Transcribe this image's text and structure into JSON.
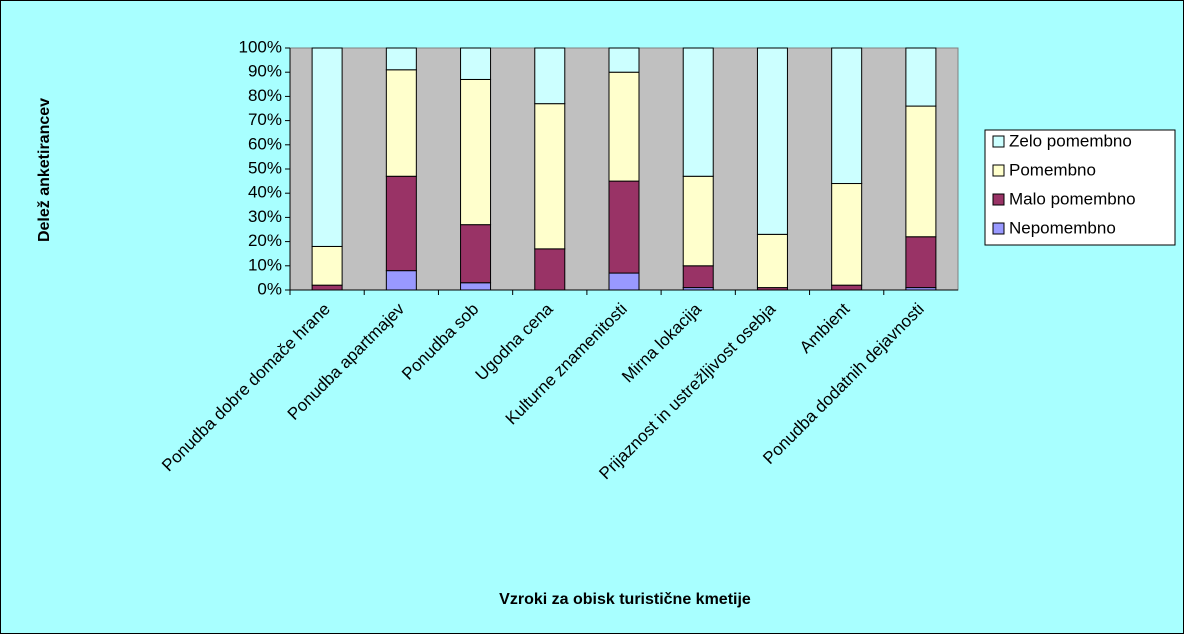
{
  "chart_data": {
    "type": "stacked_bar_percent",
    "y_axis_label": "Delež anketirancev",
    "x_axis_label": "Vzroki za obisk turistične kmetije",
    "categories": [
      "Ponudba dobre domače hrane",
      "Ponudba apartmajev",
      "Ponudba sob",
      "Ugodna cena",
      "Kulturne znamenitosti",
      "Mirna lokacija",
      "Prijaznost in ustrežljivost osebja",
      "Ambient",
      "Ponudba dodatnih dejavnosti"
    ],
    "series": [
      {
        "name": "Nepomembno",
        "color": "#9999ff",
        "values": [
          0,
          8,
          3,
          0,
          7,
          1,
          0,
          0,
          1
        ]
      },
      {
        "name": "Malo pomembno",
        "color": "#993366",
        "values": [
          2,
          39,
          24,
          17,
          38,
          9,
          1,
          2,
          21
        ]
      },
      {
        "name": "Pomembno",
        "color": "#ffffcc",
        "values": [
          16,
          44,
          60,
          60,
          45,
          37,
          22,
          42,
          54
        ]
      },
      {
        "name": "Zelo pomembno",
        "color": "#ccffff",
        "values": [
          82,
          9,
          13,
          23,
          10,
          53,
          77,
          56,
          24
        ]
      }
    ],
    "ylim": [
      0,
      100
    ],
    "yticks": [
      {
        "value": 0,
        "label": "0%"
      },
      {
        "value": 10,
        "label": "10%"
      },
      {
        "value": 20,
        "label": "20%"
      },
      {
        "value": 30,
        "label": "30%"
      },
      {
        "value": 40,
        "label": "40%"
      },
      {
        "value": 50,
        "label": "50%"
      },
      {
        "value": 60,
        "label": "60%"
      },
      {
        "value": 70,
        "label": "70%"
      },
      {
        "value": 80,
        "label": "80%"
      },
      {
        "value": 90,
        "label": "90%"
      },
      {
        "value": 100,
        "label": "100%"
      }
    ],
    "grid": false,
    "legend": "right"
  }
}
